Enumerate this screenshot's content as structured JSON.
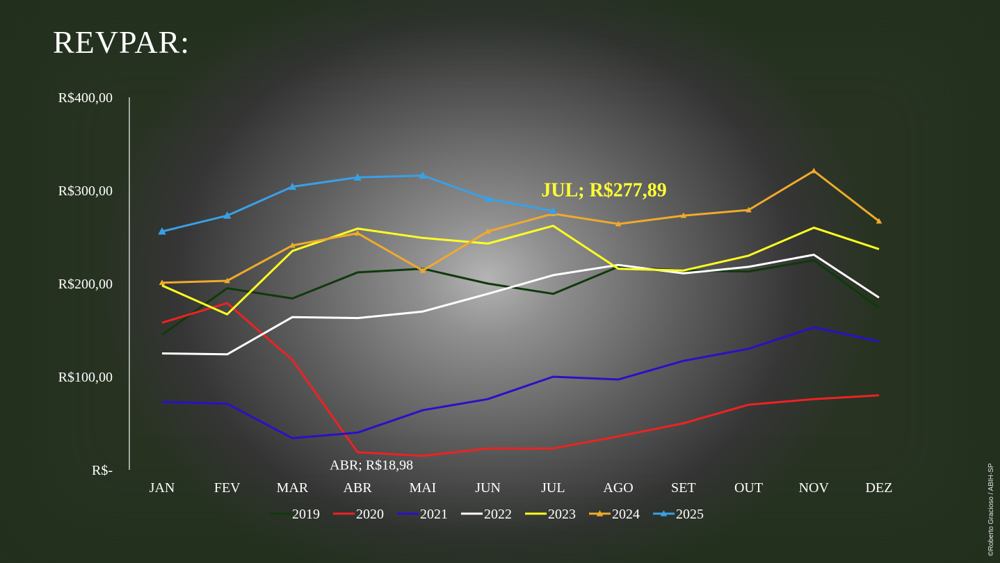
{
  "page": {
    "title": "REVPAR:",
    "credit": "©Roberto Gracioso / ABIH-SP"
  },
  "chart_data": {
    "type": "line",
    "title": "",
    "xlabel": "",
    "ylabel": "",
    "ylim": [
      0,
      400
    ],
    "yticks": [
      0,
      100,
      200,
      300,
      400
    ],
    "ytick_labels": [
      "R$-",
      "R$100,00",
      "R$200,00",
      "R$300,00",
      "R$400,00"
    ],
    "categories": [
      "JAN",
      "FEV",
      "MAR",
      "ABR",
      "MAI",
      "JUN",
      "JUL",
      "AGO",
      "SET",
      "OUT",
      "NOV",
      "DEZ"
    ],
    "grid": false,
    "legend": "bottom",
    "series": [
      {
        "name": "2019",
        "color": "#0f3a0a",
        "marker": "none",
        "values": [
          145,
          195,
          184,
          212,
          216,
          200,
          189,
          218,
          214,
          213,
          225,
          174
        ]
      },
      {
        "name": "2020",
        "color": "#ee2222",
        "marker": "none",
        "values": [
          158,
          179,
          118,
          18.98,
          15,
          23,
          23,
          36,
          50,
          70,
          76,
          80
        ]
      },
      {
        "name": "2021",
        "color": "#2a10c8",
        "marker": "none",
        "values": [
          73,
          71,
          34,
          40,
          64,
          76,
          100,
          97,
          117,
          130,
          153,
          138
        ]
      },
      {
        "name": "2022",
        "color": "#ffffff",
        "marker": "none",
        "values": [
          125,
          124,
          164,
          163,
          170,
          189,
          209,
          220,
          211,
          218,
          231,
          185
        ]
      },
      {
        "name": "2023",
        "color": "#ffff22",
        "marker": "none",
        "values": [
          198,
          167,
          235,
          259,
          249,
          243,
          262,
          216,
          214,
          230,
          260,
          237
        ]
      },
      {
        "name": "2024",
        "color": "#f0aa2c",
        "marker": "triangle",
        "values": [
          201,
          203,
          241,
          254,
          214,
          256,
          275,
          264,
          273,
          279,
          321,
          267
        ]
      },
      {
        "name": "2025",
        "color": "#3aa0e6",
        "marker": "triangle",
        "values": [
          256,
          273,
          304,
          314,
          316,
          291,
          277.89,
          null,
          null,
          null,
          null,
          null
        ]
      }
    ],
    "annotations": [
      {
        "label": "JUL;  R$277,89",
        "series": "2025",
        "category": "JUL",
        "value": 277.89,
        "style": "highlight"
      },
      {
        "label": "ABR;  R$18,98",
        "series": "2020",
        "category": "ABR",
        "value": 18.98,
        "style": "plain"
      }
    ]
  }
}
